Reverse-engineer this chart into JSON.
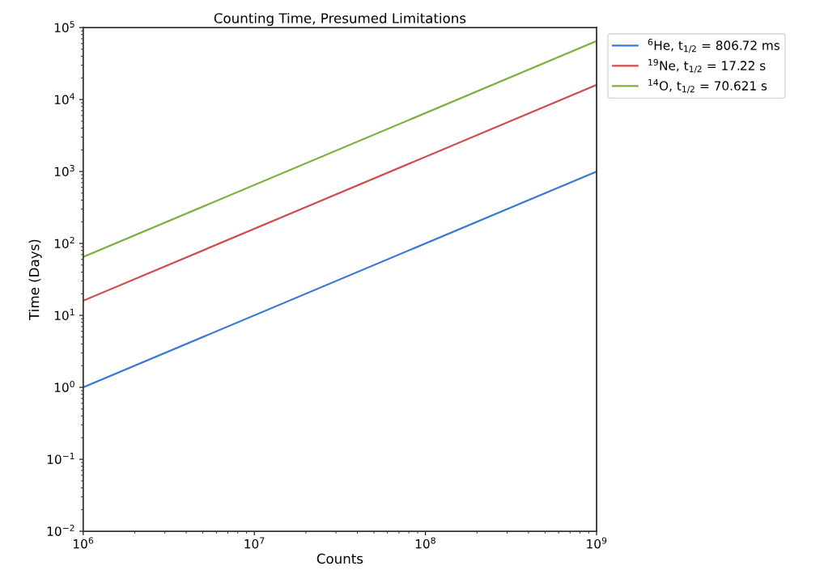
{
  "chart_data": {
    "type": "line",
    "title": "Counting Time, Presumed Limitations",
    "xlabel": "Counts",
    "ylabel": "Time (Days)",
    "x": [
      1000000,
      1000000000
    ],
    "series": [
      {
        "name": "$^{6}$He, t$_{1/2}$ = 806.72 ms",
        "color": "#3a78d8",
        "values": [
          1,
          1000
        ]
      },
      {
        "name": "$^{19}$Ne, t$_{1/2}$ = 17.22 s",
        "color": "#d04b4b",
        "values": [
          16,
          16000
        ]
      },
      {
        "name": "$^{14}$O, t$_{1/2}$ = 70.621 s",
        "color": "#7ab03c",
        "values": [
          65,
          65000
        ]
      }
    ],
    "log": "xy",
    "xlim": [
      1000000,
      1000000000
    ],
    "ylim": [
      0.01,
      100000
    ],
    "xticks": [
      {
        "value": 1000000,
        "label": "10$^{6}$"
      },
      {
        "value": 10000000,
        "label": "10$^{7}$"
      },
      {
        "value": 100000000,
        "label": "10$^{8}$"
      },
      {
        "value": 1000000000,
        "label": "10$^{9}$"
      }
    ],
    "yticks": [
      {
        "value": 0.01,
        "label": "10$^{−2}$"
      },
      {
        "value": 0.1,
        "label": "10$^{−1}$"
      },
      {
        "value": 1,
        "label": "10$^{0}$"
      },
      {
        "value": 10,
        "label": "10$^{1}$"
      },
      {
        "value": 100,
        "label": "10$^{2}$"
      },
      {
        "value": 1000,
        "label": "10$^{3}$"
      },
      {
        "value": 10000,
        "label": "10$^{4}$"
      },
      {
        "value": 100000,
        "label": "10$^{5}$"
      }
    ],
    "grid": false,
    "legend": "top right",
    "marker": "none",
    "line_style": "solid"
  }
}
